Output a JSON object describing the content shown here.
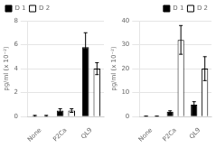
{
  "chart_data": [
    {
      "type": "bar",
      "categories": [
        "None",
        "P2Ca",
        "QL9"
      ],
      "series": [
        {
          "name": "D 1",
          "color": "#000000",
          "values": [
            0.05,
            0.5,
            5.8
          ],
          "errors": [
            0.05,
            0.15,
            1.2
          ]
        },
        {
          "name": "D 2",
          "color": "#ffffff",
          "values": [
            0.05,
            0.5,
            4.0
          ],
          "errors": [
            0.05,
            0.15,
            0.5
          ]
        }
      ],
      "ylabel": "pg/ml (x 10⁻²)",
      "ylim": [
        0,
        8
      ],
      "yticks": [
        0,
        2,
        4,
        6,
        8
      ],
      "grid": true,
      "legend": "upper left"
    },
    {
      "type": "bar",
      "categories": [
        "None",
        "P2Ca",
        "QL9"
      ],
      "series": [
        {
          "name": "D 1",
          "color": "#000000",
          "values": [
            0.1,
            2.0,
            5.0
          ],
          "errors": [
            0.05,
            0.4,
            1.2
          ]
        },
        {
          "name": "D 2",
          "color": "#ffffff",
          "values": [
            0.1,
            32.0,
            20.0
          ],
          "errors": [
            0.05,
            6.0,
            5.0
          ]
        }
      ],
      "ylabel": "pg/ml (x 10⁻²)",
      "ylim": [
        0,
        40
      ],
      "yticks": [
        0,
        10,
        20,
        30,
        40
      ],
      "grid": true,
      "legend": "upper right"
    }
  ]
}
